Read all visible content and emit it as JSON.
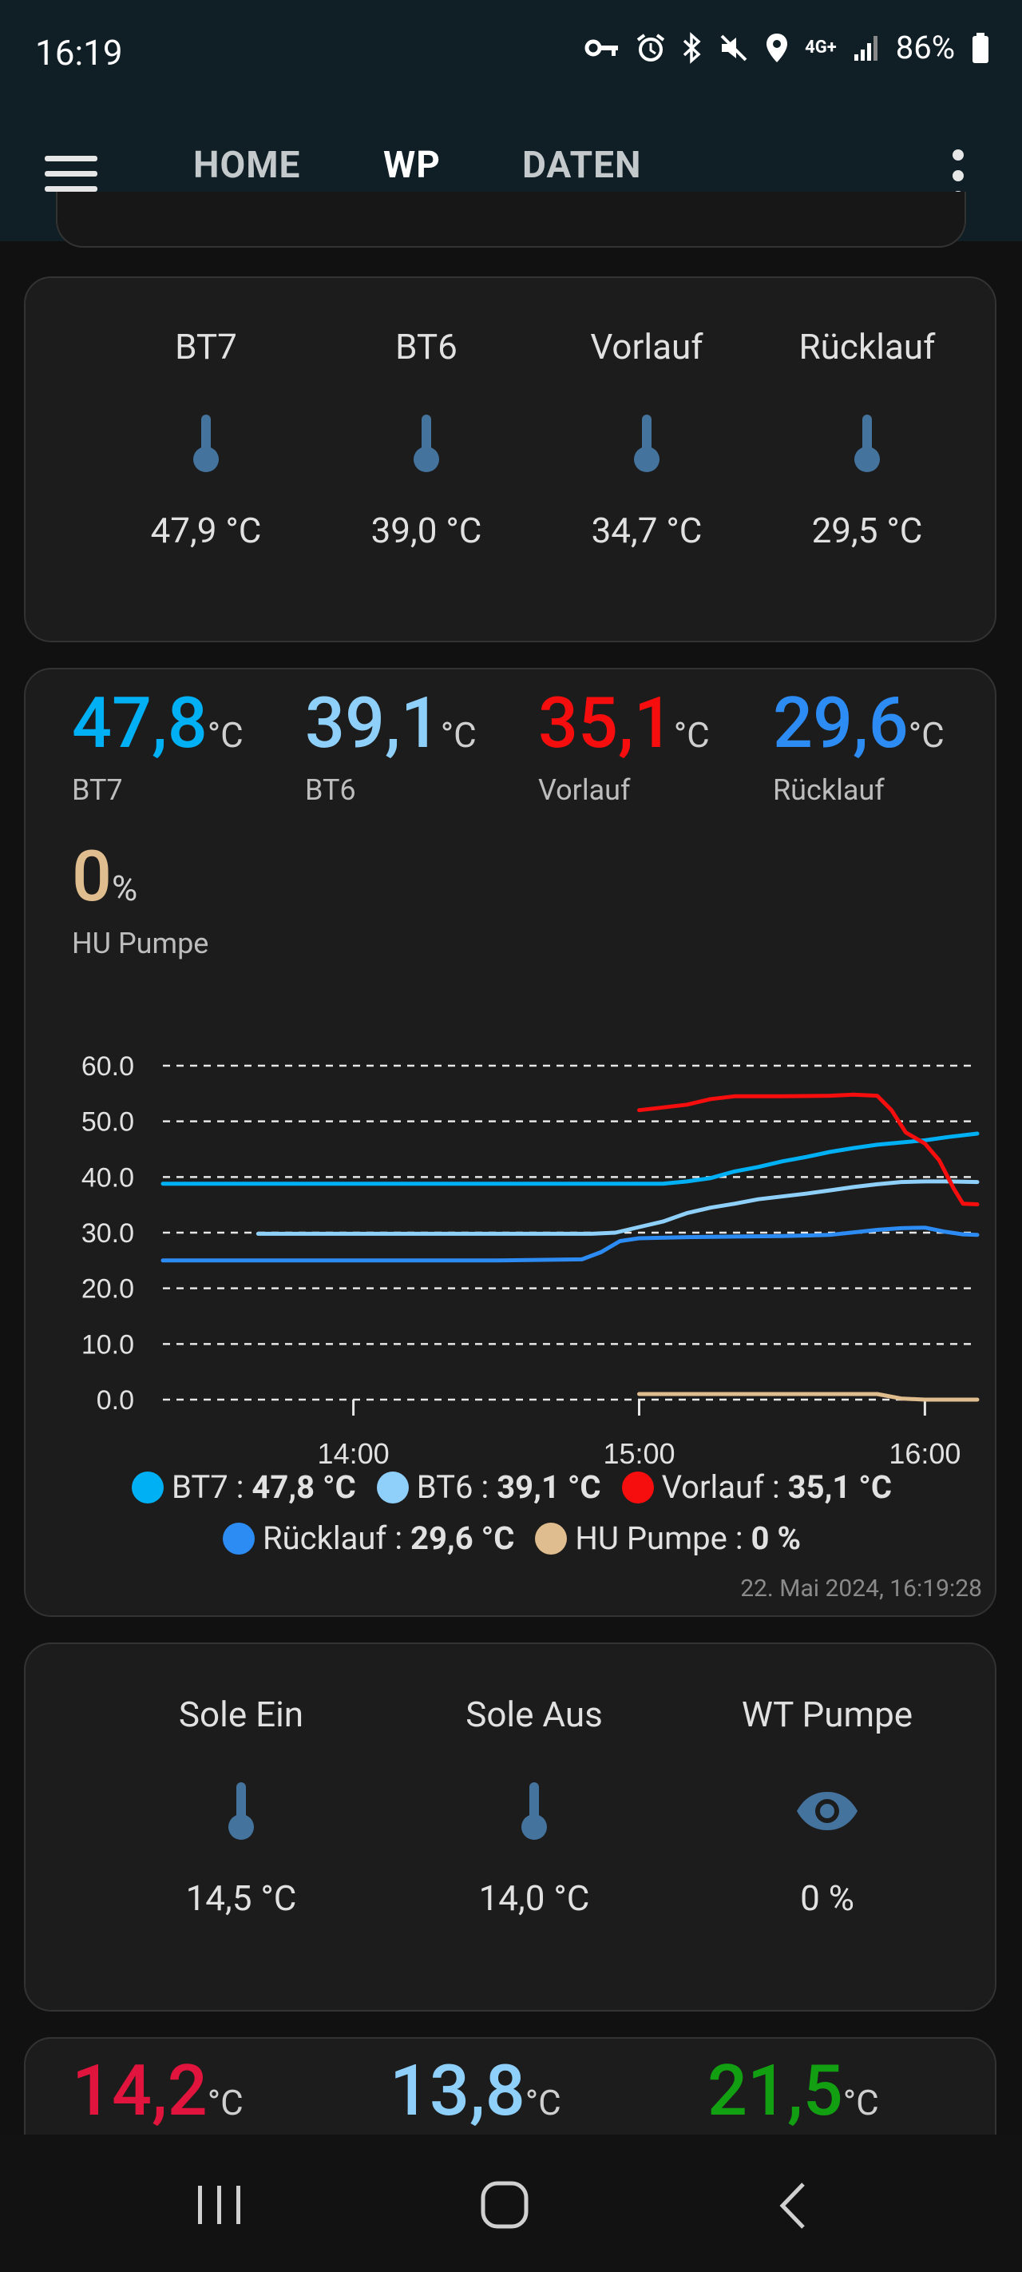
{
  "status_bar": {
    "time": "16:19",
    "battery": "86%",
    "network": "4G+"
  },
  "toolbar": {
    "tabs": [
      "HOME",
      "WP",
      "DATEN"
    ],
    "active_tab": "WP"
  },
  "card1": {
    "sensors": [
      {
        "name": "BT7",
        "value": "47,9 °C",
        "icon": "thermometer-icon"
      },
      {
        "name": "BT6",
        "value": "39,0 °C",
        "icon": "thermometer-icon"
      },
      {
        "name": "Vorlauf",
        "value": "34,7 °C",
        "icon": "thermometer-icon"
      },
      {
        "name": "Rücklauf",
        "value": "29,5 °C",
        "icon": "thermometer-icon"
      }
    ]
  },
  "card2": {
    "values": [
      {
        "value": "47,8",
        "unit": "°C",
        "label": "BT7",
        "color": "#00b0f4"
      },
      {
        "value": "39,1",
        "unit": "°C",
        "label": "BT6",
        "color": "#8fd0fb"
      },
      {
        "value": "35,1",
        "unit": "°C",
        "label": "Vorlauf",
        "color": "#f60d0d"
      },
      {
        "value": "29,6",
        "unit": "°C",
        "label": "Rücklauf",
        "color": "#2c8cf4"
      },
      {
        "value": "0",
        "unit": "%",
        "label": "HU Pumpe",
        "color": "#e0bd8e"
      }
    ],
    "legend": [
      {
        "name": "BT7",
        "value": "47,8 °C",
        "color": "#00b0f4"
      },
      {
        "name": "BT6",
        "value": "39,1 °C",
        "color": "#8fd0fb"
      },
      {
        "name": "Vorlauf",
        "value": "35,1 °C",
        "color": "#f60d0d"
      },
      {
        "name": "Rücklauf",
        "value": "29,6 °C",
        "color": "#2c8cf4"
      },
      {
        "name": "HU Pumpe",
        "value": "0 %",
        "color": "#e0bd8e"
      }
    ],
    "timestamp": "22. Mai 2024, 16:19:28"
  },
  "chart_data": {
    "type": "line",
    "ylim": [
      0,
      60
    ],
    "yticks": [
      "60.0",
      "50.0",
      "40.0",
      "30.0",
      "20.0",
      "10.0",
      "0.0"
    ],
    "xticks": [
      "14:00",
      "15:00",
      "16:00"
    ],
    "xlim": [
      "13:20",
      "16:11"
    ],
    "grid": true,
    "series": [
      {
        "name": "BT7",
        "color": "#00b0f4",
        "x": [
          "13:20",
          "14:00",
          "14:30",
          "15:00",
          "15:05",
          "15:10",
          "15:15",
          "15:20",
          "15:25",
          "15:30",
          "15:35",
          "15:40",
          "15:45",
          "15:50",
          "15:55",
          "16:00",
          "16:05",
          "16:11"
        ],
        "y": [
          38.8,
          38.8,
          38.8,
          38.8,
          38.8,
          39.2,
          39.8,
          41.0,
          41.8,
          42.8,
          43.6,
          44.5,
          45.2,
          45.8,
          46.2,
          46.6,
          47.2,
          47.8
        ]
      },
      {
        "name": "BT6",
        "color": "#8fd0fb",
        "x": [
          "13:40",
          "14:00",
          "14:30",
          "14:50",
          "14:55",
          "15:00",
          "15:05",
          "15:10",
          "15:15",
          "15:20",
          "15:25",
          "15:30",
          "15:35",
          "15:40",
          "15:45",
          "15:50",
          "15:55",
          "16:00",
          "16:05",
          "16:11"
        ],
        "y": [
          29.8,
          29.8,
          29.8,
          29.8,
          30.0,
          31.0,
          32.0,
          33.5,
          34.5,
          35.2,
          36.0,
          36.5,
          37.0,
          37.6,
          38.2,
          38.7,
          39.1,
          39.2,
          39.2,
          39.1
        ]
      },
      {
        "name": "Vorlauf",
        "color": "#f60d0d",
        "x": [
          "15:00",
          "15:05",
          "15:10",
          "15:15",
          "15:20",
          "15:30",
          "15:40",
          "15:45",
          "15:50",
          "15:53",
          "15:56",
          "16:00",
          "16:03",
          "16:06",
          "16:08",
          "16:11"
        ],
        "y": [
          52.0,
          52.5,
          53.0,
          54.0,
          54.5,
          54.5,
          54.6,
          54.8,
          54.6,
          52.0,
          48.0,
          46.0,
          43.0,
          38.0,
          35.2,
          35.1
        ]
      },
      {
        "name": "Rücklauf",
        "color": "#2c8cf4",
        "x": [
          "13:20",
          "14:00",
          "14:30",
          "14:48",
          "14:52",
          "14:56",
          "15:00",
          "15:10",
          "15:20",
          "15:30",
          "15:40",
          "15:50",
          "15:55",
          "16:00",
          "16:04",
          "16:08",
          "16:11"
        ],
        "y": [
          25.0,
          25.0,
          25.0,
          25.2,
          26.5,
          28.5,
          29.0,
          29.2,
          29.3,
          29.4,
          29.6,
          30.5,
          30.8,
          30.9,
          30.2,
          29.7,
          29.6
        ]
      },
      {
        "name": "HU Pumpe",
        "color": "#e0bd8e",
        "x": [
          "15:00",
          "15:30",
          "15:50",
          "15:55",
          "16:00",
          "16:11"
        ],
        "y": [
          1.0,
          1.0,
          1.0,
          0.2,
          0,
          0
        ]
      }
    ]
  },
  "card3": {
    "sensors": [
      {
        "name": "Sole Ein",
        "value": "14,5 °C",
        "icon": "thermometer-icon"
      },
      {
        "name": "Sole Aus",
        "value": "14,0 °C",
        "icon": "thermometer-icon"
      },
      {
        "name": "WT Pumpe",
        "value": "0 %",
        "icon": "eye-icon"
      }
    ]
  },
  "card4": {
    "values": [
      {
        "value": "14,2",
        "unit": "°C",
        "color": "#e0143c"
      },
      {
        "value": "13,8",
        "unit": "°C",
        "color": "#8fd0fb"
      },
      {
        "value": "21,5",
        "unit": "°C",
        "color": "#12a012"
      }
    ]
  },
  "colors": {
    "icon": "#44739e",
    "card_bg": "#1c1c1c",
    "app_bar": "#101e26"
  }
}
